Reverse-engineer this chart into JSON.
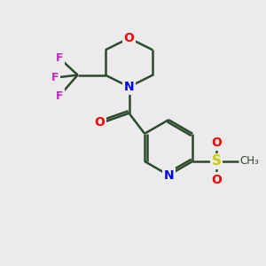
{
  "bg_color": "#ebebeb",
  "bond_color": "#2d4a2d",
  "atom_colors": {
    "O": "#ff0000",
    "N": "#0000ee",
    "F": "#cc22cc",
    "S": "#cccc00",
    "O_sulfonyl": "#ff0000",
    "C_bond": "#2d4a2d"
  },
  "bond_width": 1.8,
  "figsize": [
    3.0,
    3.0
  ],
  "dpi": 100
}
